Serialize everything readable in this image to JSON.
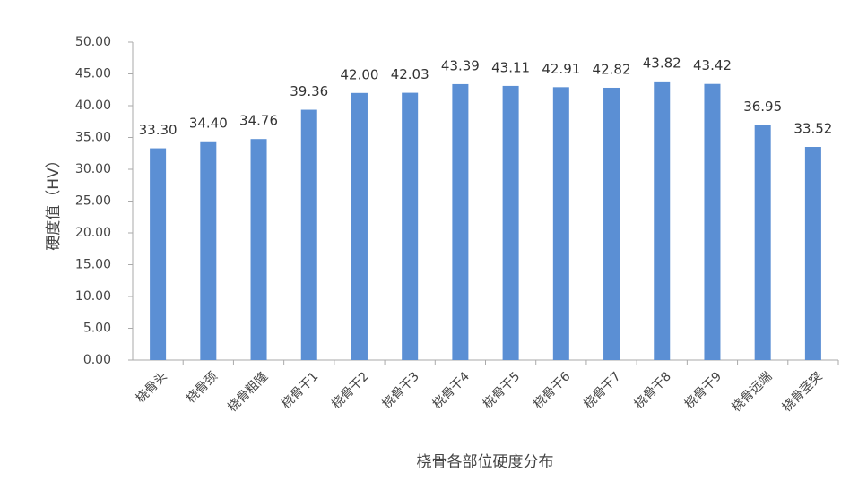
{
  "chart_data": {
    "type": "bar",
    "x_label": "桡骨各部位硬度分布",
    "y_label": "硬度值（HV）",
    "categories": [
      "桡骨头",
      "桡骨颈",
      "桡骨粗隆",
      "桡骨干1",
      "桡骨干2",
      "桡骨干3",
      "桡骨干4",
      "桡骨干5",
      "桡骨干6",
      "桡骨干7",
      "桡骨干8",
      "桡骨干9",
      "桡骨远端",
      "桡骨茎突"
    ],
    "values": [
      33.3,
      34.4,
      34.76,
      39.36,
      42,
      42.03,
      43.39,
      43.11,
      42.91,
      42.82,
      43.82,
      43.42,
      36.95,
      33.52
    ],
    "value_labels": [
      "33.30",
      "34.40",
      "34.76",
      "39.36",
      "42.00",
      "42.03",
      "43.39",
      "43.11",
      "42.91",
      "42.82",
      "43.82",
      "43.42",
      "36.95",
      "33.52"
    ],
    "color": "#5b8fd4",
    "ylim": [
      0,
      50
    ],
    "yticks": [
      {
        "value": 0,
        "label": "0.00"
      },
      {
        "value": 5,
        "label": "5.00"
      },
      {
        "value": 10,
        "label": "10.00"
      },
      {
        "value": 15,
        "label": "15.00"
      },
      {
        "value": 20,
        "label": "20.00"
      },
      {
        "value": 25,
        "label": "25.00"
      },
      {
        "value": 30,
        "label": "30.00"
      },
      {
        "value": 35,
        "label": "35.00"
      },
      {
        "value": 40,
        "label": "40.00"
      },
      {
        "value": 45,
        "label": "45.00"
      },
      {
        "value": 50,
        "label": "50.00"
      }
    ],
    "grid": false
  }
}
